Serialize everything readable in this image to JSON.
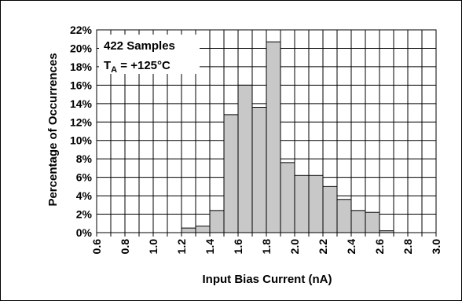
{
  "chart_data": {
    "type": "bar",
    "title": "",
    "xlabel": "Input Bias Current (nA)",
    "ylabel": "Percentage of Occurrences",
    "annotation": {
      "samples": "422 Samples",
      "temp_prefix": "T",
      "temp_sub": "A",
      "temp_suffix": " = +125°C"
    },
    "x_bin_width": 0.1,
    "xlim": [
      0.6,
      3.0
    ],
    "ylim": [
      0,
      22
    ],
    "x_ticks": [
      "0.6",
      "0.8",
      "1.0",
      "1.2",
      "1.4",
      "1.6",
      "1.8",
      "2.0",
      "2.2",
      "2.4",
      "2.6",
      "2.8",
      "3.0"
    ],
    "y_ticks": [
      "0%",
      "2%",
      "4%",
      "6%",
      "8%",
      "10%",
      "12%",
      "14%",
      "16%",
      "18%",
      "20%",
      "22%"
    ],
    "grid": true,
    "bins": [
      {
        "x0": 1.2,
        "x1": 1.3,
        "value": 0.5
      },
      {
        "x0": 1.3,
        "x1": 1.4,
        "value": 0.7
      },
      {
        "x0": 1.4,
        "x1": 1.5,
        "value": 2.4
      },
      {
        "x0": 1.5,
        "x1": 1.6,
        "value": 12.8
      },
      {
        "x0": 1.6,
        "x1": 1.7,
        "value": 16.0
      },
      {
        "x0": 1.7,
        "x1": 1.8,
        "value": 13.6
      },
      {
        "x0": 1.8,
        "x1": 1.9,
        "value": 20.7
      },
      {
        "x0": 1.9,
        "x1": 2.0,
        "value": 7.6
      },
      {
        "x0": 2.0,
        "x1": 2.1,
        "value": 6.2
      },
      {
        "x0": 2.1,
        "x1": 2.2,
        "value": 6.2
      },
      {
        "x0": 2.2,
        "x1": 2.3,
        "value": 5.0
      },
      {
        "x0": 2.3,
        "x1": 2.4,
        "value": 3.6
      },
      {
        "x0": 2.4,
        "x1": 2.5,
        "value": 2.4
      },
      {
        "x0": 2.5,
        "x1": 2.6,
        "value": 2.2
      },
      {
        "x0": 2.6,
        "x1": 2.7,
        "value": 0.2
      }
    ],
    "colors": {
      "bar_fill": "#c8c8c8",
      "bar_stroke": "#000000",
      "grid": "#000000"
    }
  }
}
